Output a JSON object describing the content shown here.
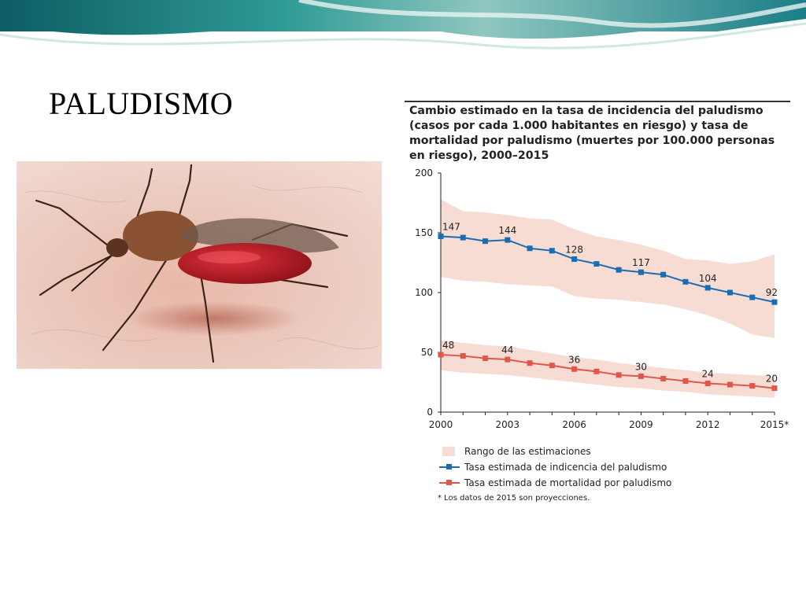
{
  "slide": {
    "title": "PALUDISMO"
  },
  "colors": {
    "incidence": "#1a6db3",
    "mortality": "#e0574a",
    "band": "#f7dcd4",
    "banner_teal": "#1f8a8a"
  },
  "chart_data": {
    "type": "line",
    "title": "Cambio estimado en la tasa de incidencia del paludismo (casos por cada 1.000 habitantes en riesgo) y tasa de mortalidad por paludismo (muertes por 100.000 personas en riesgo), 2000–2015",
    "x": [
      2000,
      2001,
      2002,
      2003,
      2004,
      2005,
      2006,
      2007,
      2008,
      2009,
      2010,
      2011,
      2012,
      2013,
      2014,
      2015
    ],
    "x_tick_values": [
      2000,
      2003,
      2006,
      2009,
      2012,
      2015
    ],
    "x_tick_labels": [
      "2000",
      "2003",
      "2006",
      "2009",
      "2012",
      "2015*"
    ],
    "ylim": [
      0,
      200
    ],
    "y_ticks": [
      0,
      50,
      100,
      150,
      200
    ],
    "xlabel": "",
    "ylabel": "",
    "grid": false,
    "series": [
      {
        "name": "Tasa estimada de indicencia del paludismo",
        "color": "#1a6db3",
        "values": [
          147,
          146,
          143,
          144,
          137,
          135,
          128,
          124,
          119,
          117,
          115,
          109,
          104,
          100,
          96,
          92
        ],
        "band_upper": [
          178,
          168,
          167,
          165,
          162,
          161,
          153,
          147,
          144,
          140,
          135,
          128,
          127,
          124,
          126,
          132
        ],
        "band_lower": [
          113,
          110,
          109,
          107,
          106,
          105,
          97,
          95,
          94,
          92,
          90,
          86,
          81,
          74,
          65,
          62
        ],
        "labels": [
          {
            "x": 2000,
            "text": "147"
          },
          {
            "x": 2003,
            "text": "144"
          },
          {
            "x": 2006,
            "text": "128"
          },
          {
            "x": 2009,
            "text": "117"
          },
          {
            "x": 2012,
            "text": "104"
          },
          {
            "x": 2015,
            "text": "92"
          }
        ]
      },
      {
        "name": "Tasa estimada de mortalidad por paludismo",
        "color": "#e0574a",
        "values": [
          48,
          47,
          45,
          44,
          41,
          39,
          36,
          34,
          31,
          30,
          28,
          26,
          24,
          23,
          22,
          20
        ],
        "band_upper": [
          60,
          58,
          56,
          55,
          52,
          49,
          46,
          44,
          41,
          39,
          37,
          35,
          33,
          32,
          31,
          30
        ],
        "band_lower": [
          35,
          33,
          32,
          31,
          29,
          27,
          25,
          23,
          21,
          20,
          18,
          17,
          15,
          14,
          13,
          12
        ],
        "labels": [
          {
            "x": 2000,
            "text": "48"
          },
          {
            "x": 2003,
            "text": "44"
          },
          {
            "x": 2006,
            "text": "36"
          },
          {
            "x": 2009,
            "text": "30"
          },
          {
            "x": 2012,
            "text": "24"
          },
          {
            "x": 2015,
            "text": "20"
          }
        ]
      }
    ],
    "legend": {
      "placement": "bottom",
      "band_label": "Rango de las estimaciones",
      "incidence_label": "Tasa estimada de indicencia del paludismo",
      "mortality_label": "Tasa estimada de mortalidad por paludismo"
    },
    "footnote": "* Los datos de 2015 son proyecciones."
  },
  "photo": {
    "icon": "mosquito-photo"
  }
}
